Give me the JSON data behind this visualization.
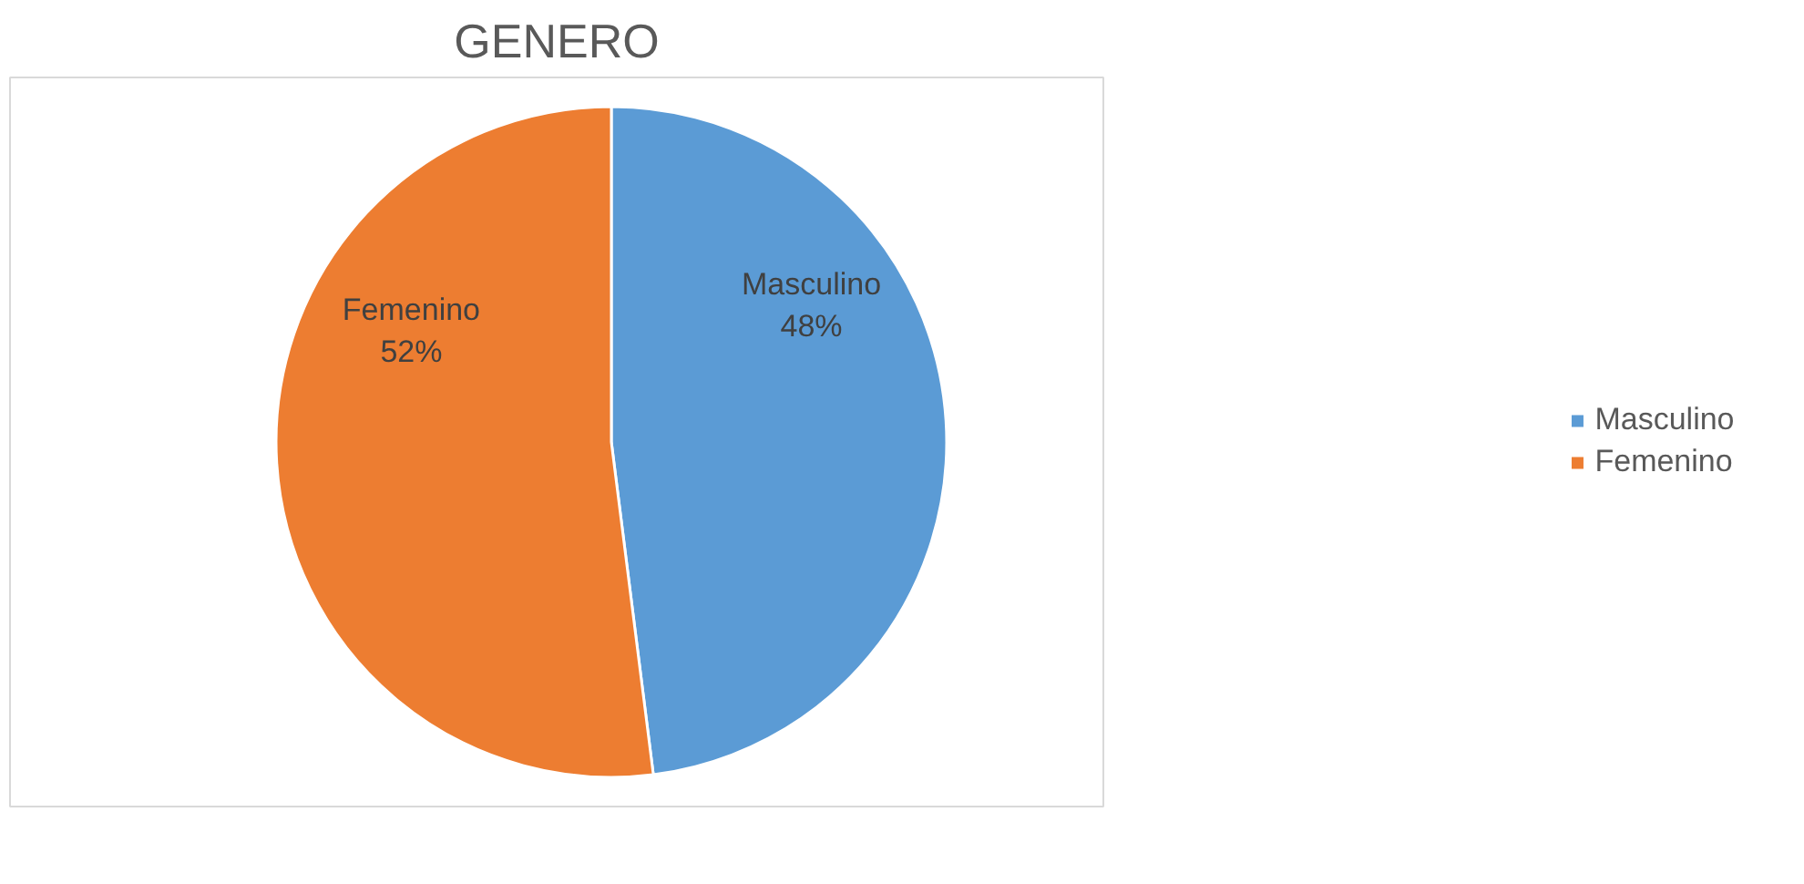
{
  "chart_data": {
    "type": "pie",
    "title": "GENERO",
    "categories": [
      "Masculino",
      "Femenino"
    ],
    "values": [
      48,
      52
    ],
    "value_labels": [
      "48%",
      "52%"
    ],
    "colors": [
      "#5b9bd5",
      "#ed7d31"
    ],
    "legend": "right"
  }
}
